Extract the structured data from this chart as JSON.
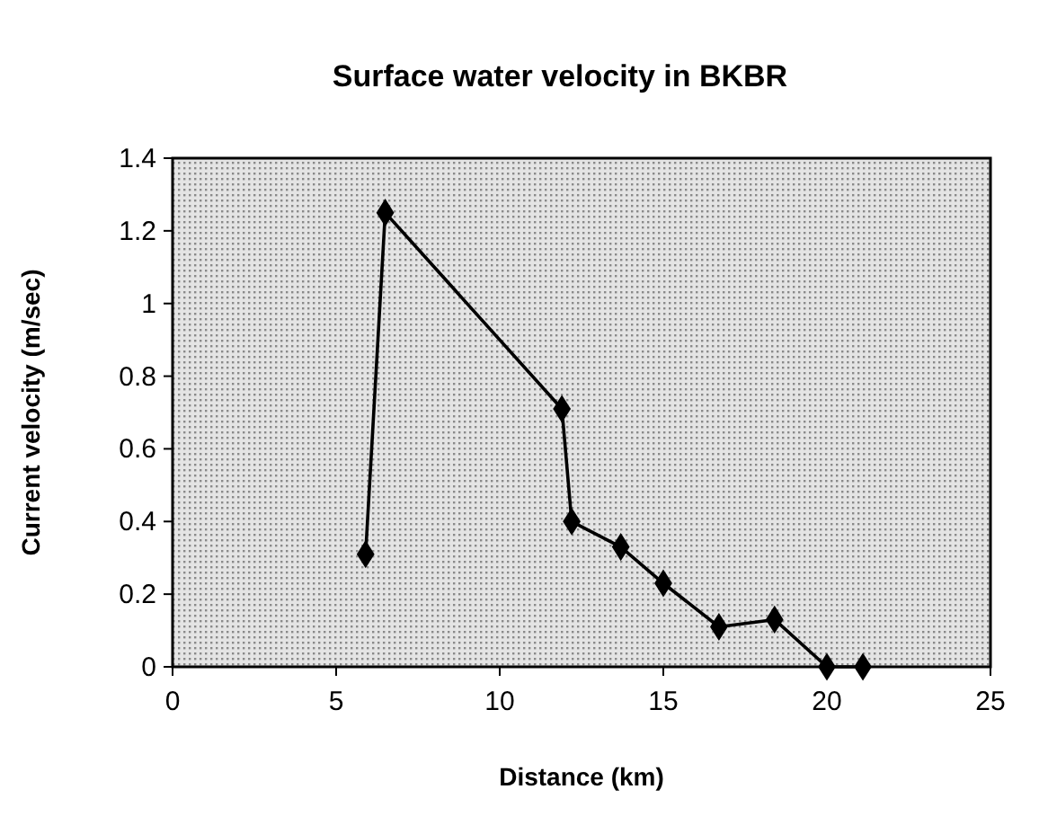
{
  "chart_data": {
    "type": "line",
    "title": "Surface water velocity in BKBR",
    "xlabel": "Distance (km)",
    "ylabel": "Current velocity (m/sec)",
    "x": [
      5.9,
      6.5,
      11.9,
      12.2,
      13.7,
      15.0,
      16.7,
      18.4,
      20.0,
      21.1
    ],
    "series": [
      {
        "color": "#000000",
        "values": [
          0.31,
          1.25,
          0.71,
          0.4,
          0.33,
          0.23,
          0.11,
          0.13,
          0,
          0
        ]
      }
    ],
    "xlim": [
      0,
      25
    ],
    "xticks": [
      0,
      5,
      10,
      15,
      20,
      25
    ],
    "ylim": [
      0,
      1.4
    ],
    "yticks": [
      0,
      0.2,
      0.4,
      0.6,
      0.8,
      1,
      1.2,
      1.4
    ],
    "grid": false,
    "marker": "diamond",
    "line_style": "solid"
  }
}
